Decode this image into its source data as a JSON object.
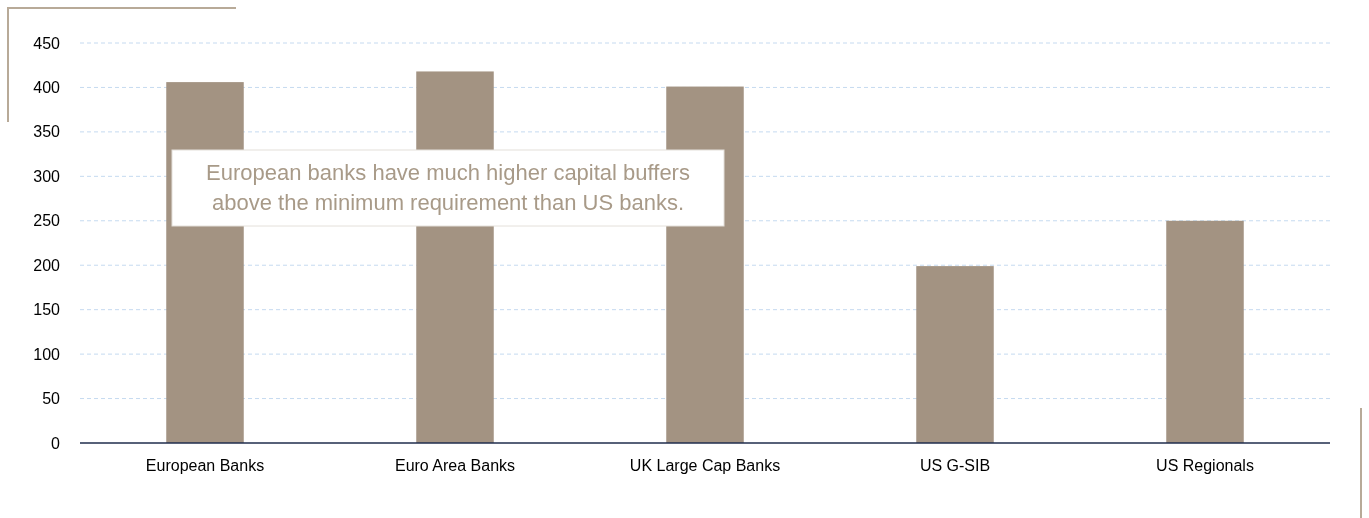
{
  "chart_data": {
    "type": "bar",
    "categories": [
      "European Banks",
      "Euro Area Banks",
      "UK Large Cap Banks",
      "US G-SIB",
      "US Regionals"
    ],
    "values": [
      406,
      418,
      401,
      199,
      250
    ],
    "color": "#a39382",
    "ylim": [
      0,
      450
    ],
    "yticks": [
      0,
      50,
      100,
      150,
      200,
      250,
      300,
      350,
      400,
      450
    ],
    "grid": "y",
    "annotations": [
      "European banks have much higher capital buffers above the minimum requirement than US banks."
    ]
  }
}
